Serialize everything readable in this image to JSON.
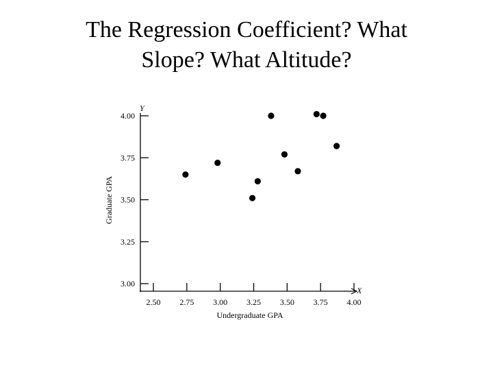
{
  "slide": {
    "title_line1": "The Regression Coefficient? What",
    "title_line2": "Slope? What Altitude?"
  },
  "chart_data": {
    "type": "scatter",
    "title": "",
    "xlabel": "Undergraduate GPA",
    "ylabel": "Graduate GPA",
    "x_axis_letter": "X",
    "y_axis_letter": "Y",
    "xlim": [
      2.5,
      4.0
    ],
    "ylim": [
      3.0,
      4.0
    ],
    "x_ticks": [
      2.5,
      2.75,
      3.0,
      3.25,
      3.5,
      3.75,
      4.0
    ],
    "x_tick_labels": [
      "2.50",
      "2.75",
      "3.00",
      "3.25",
      "3.50",
      "3.75",
      "4.00"
    ],
    "y_ticks": [
      3.0,
      3.25,
      3.5,
      3.75,
      4.0
    ],
    "y_tick_labels": [
      "3.00",
      "3.25",
      "3.50",
      "3.75",
      "4.00"
    ],
    "grid": false,
    "point_color": "#000000",
    "points": [
      {
        "x": 2.74,
        "y": 3.65
      },
      {
        "x": 2.98,
        "y": 3.72
      },
      {
        "x": 3.24,
        "y": 3.51
      },
      {
        "x": 3.28,
        "y": 3.61
      },
      {
        "x": 3.38,
        "y": 4.0
      },
      {
        "x": 3.48,
        "y": 3.77
      },
      {
        "x": 3.58,
        "y": 3.67
      },
      {
        "x": 3.72,
        "y": 4.01
      },
      {
        "x": 3.77,
        "y": 4.0
      },
      {
        "x": 3.87,
        "y": 3.82
      }
    ]
  }
}
